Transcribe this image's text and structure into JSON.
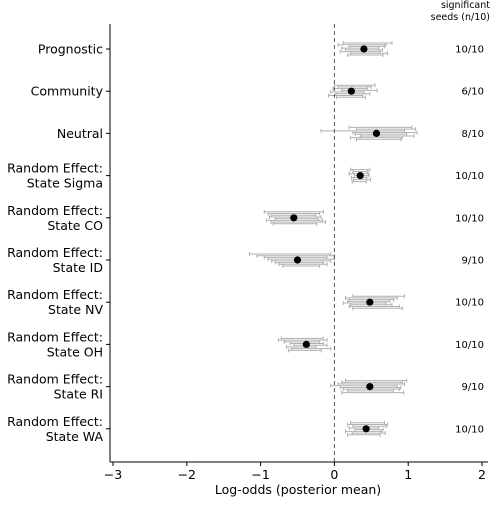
{
  "chart_data": {
    "type": "scatter",
    "xlabel": "Log-odds (posterior mean)",
    "xlim": [
      -3,
      2.1
    ],
    "xticks": [
      -3,
      -2,
      -1,
      0,
      1,
      2
    ],
    "xtick_labels": [
      "−3",
      "−2",
      "−1",
      "0",
      "1",
      "2"
    ],
    "reference_line": 0,
    "right_header": [
      "significant",
      "seeds (n/10)"
    ],
    "categories": [
      {
        "label": [
          "Prognostic"
        ],
        "mean": 0.4,
        "significant": "10/10",
        "seed_intervals": [
          [
            0.12,
            0.78
          ],
          [
            0.05,
            0.7
          ],
          [
            0.2,
            0.68
          ],
          [
            0.1,
            0.6
          ],
          [
            0.15,
            0.65
          ],
          [
            0.08,
            0.62
          ],
          [
            0.22,
            0.72
          ],
          [
            0.18,
            0.66
          ]
        ]
      },
      {
        "label": [
          "Community"
        ],
        "mean": 0.23,
        "significant": "6/10",
        "seed_intervals": [
          [
            0.0,
            0.55
          ],
          [
            0.05,
            0.5
          ],
          [
            -0.02,
            0.45
          ],
          [
            0.1,
            0.58
          ],
          [
            -0.05,
            0.4
          ],
          [
            0.02,
            0.48
          ],
          [
            -0.08,
            0.38
          ],
          [
            0.03,
            0.42
          ]
        ]
      },
      {
        "label": [
          "Neutral"
        ],
        "mean": 0.57,
        "significant": "8/10",
        "seed_intervals": [
          [
            0.2,
            1.05
          ],
          [
            0.3,
            1.1
          ],
          [
            -0.18,
            0.95
          ],
          [
            0.25,
            1.12
          ],
          [
            0.28,
            0.98
          ],
          [
            0.35,
            1.08
          ],
          [
            0.22,
            0.92
          ],
          [
            0.3,
            0.9
          ]
        ]
      },
      {
        "label": [
          "Random Effect:",
          "State Sigma"
        ],
        "mean": 0.35,
        "significant": "10/10",
        "seed_intervals": [
          [
            0.22,
            0.48
          ],
          [
            0.25,
            0.45
          ],
          [
            0.2,
            0.46
          ],
          [
            0.27,
            0.47
          ],
          [
            0.23,
            0.44
          ],
          [
            0.26,
            0.49
          ],
          [
            0.24,
            0.43
          ]
        ]
      },
      {
        "label": [
          "Random Effect:",
          "State CO"
        ],
        "mean": -0.55,
        "significant": "10/10",
        "seed_intervals": [
          [
            -0.95,
            -0.15
          ],
          [
            -0.9,
            -0.2
          ],
          [
            -0.85,
            -0.25
          ],
          [
            -0.88,
            -0.18
          ],
          [
            -0.8,
            -0.22
          ],
          [
            -0.92,
            -0.16
          ],
          [
            -0.86,
            -0.12
          ],
          [
            -0.83,
            -0.24
          ]
        ]
      },
      {
        "label": [
          "Random Effect:",
          "State ID"
        ],
        "mean": -0.5,
        "significant": "9/10",
        "seed_intervals": [
          [
            -1.15,
            -0.05
          ],
          [
            -1.05,
            0.0
          ],
          [
            -0.95,
            -0.1
          ],
          [
            -0.9,
            0.0
          ],
          [
            -0.85,
            -0.05
          ],
          [
            -0.8,
            -0.15
          ],
          [
            -0.75,
            -0.1
          ],
          [
            -0.7,
            -0.2
          ]
        ]
      },
      {
        "label": [
          "Random Effect:",
          "State NV"
        ],
        "mean": 0.48,
        "significant": "10/10",
        "seed_intervals": [
          [
            0.25,
            0.95
          ],
          [
            0.15,
            0.85
          ],
          [
            0.2,
            0.8
          ],
          [
            0.18,
            0.75
          ],
          [
            0.12,
            0.7
          ],
          [
            0.22,
            0.78
          ],
          [
            0.2,
            0.88
          ],
          [
            0.25,
            0.92
          ]
        ]
      },
      {
        "label": [
          "Random Effect:",
          "State OH"
        ],
        "mean": -0.38,
        "significant": "10/10",
        "seed_intervals": [
          [
            -0.72,
            -0.15
          ],
          [
            -0.76,
            -0.1
          ],
          [
            -0.68,
            -0.2
          ],
          [
            -0.6,
            -0.15
          ],
          [
            -0.55,
            -0.1
          ],
          [
            -0.65,
            -0.25
          ],
          [
            -0.58,
            -0.05
          ],
          [
            -0.62,
            -0.18
          ]
        ]
      },
      {
        "label": [
          "Random Effect:",
          "State RI"
        ],
        "mean": 0.48,
        "significant": "9/10",
        "seed_intervals": [
          [
            0.15,
            0.98
          ],
          [
            0.1,
            0.92
          ],
          [
            0.05,
            0.95
          ],
          [
            -0.05,
            0.85
          ],
          [
            0.08,
            0.9
          ],
          [
            0.12,
            0.88
          ],
          [
            0.18,
            0.8
          ],
          [
            0.1,
            0.94
          ]
        ]
      },
      {
        "label": [
          "Random Effect:",
          "State WA"
        ],
        "mean": 0.43,
        "significant": "10/10",
        "seed_intervals": [
          [
            0.22,
            0.68
          ],
          [
            0.18,
            0.72
          ],
          [
            0.25,
            0.7
          ],
          [
            0.2,
            0.6
          ],
          [
            0.28,
            0.66
          ],
          [
            0.15,
            0.64
          ],
          [
            0.24,
            0.69
          ],
          [
            0.18,
            0.62
          ]
        ]
      }
    ],
    "grid": false,
    "colors": {
      "mean_point": "#000000",
      "interval": "#b0b0b0",
      "reference_line": "#555555",
      "axis": "#000000"
    }
  }
}
